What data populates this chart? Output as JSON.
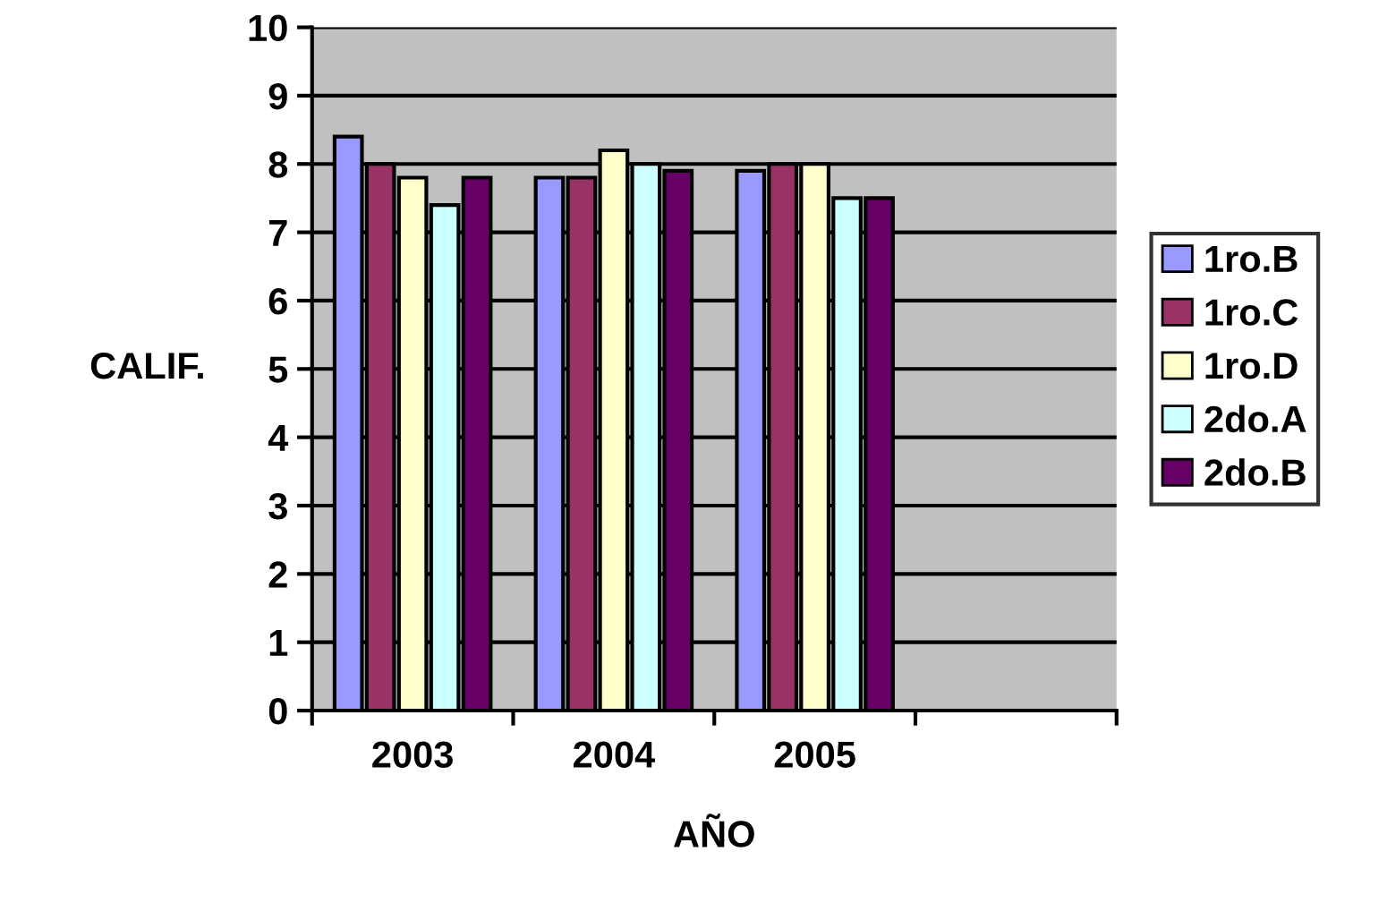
{
  "chart_data": {
    "type": "bar",
    "xlabel": "AÑO",
    "ylabel": "CALIF.",
    "categories": [
      "2003",
      "2004",
      "2005",
      null
    ],
    "series": [
      {
        "name": "1ro.B",
        "color": "#9999ff",
        "values": [
          8.4,
          7.8,
          7.9,
          null
        ]
      },
      {
        "name": "1ro.C",
        "color": "#993366",
        "values": [
          8.0,
          7.8,
          8.0,
          null
        ]
      },
      {
        "name": "1ro.D",
        "color": "#ffffcc",
        "values": [
          7.8,
          8.2,
          8.0,
          null
        ]
      },
      {
        "name": "2do.A",
        "color": "#ccffff",
        "values": [
          7.4,
          8.0,
          7.5,
          null
        ]
      },
      {
        "name": "2do.B",
        "color": "#660066",
        "values": [
          7.8,
          7.9,
          7.5,
          null
        ]
      }
    ],
    "ylim": [
      0,
      10
    ],
    "yticks": [
      0,
      1,
      2,
      3,
      4,
      5,
      6,
      7,
      8,
      9,
      10
    ],
    "grid": "y",
    "legend": "right"
  }
}
